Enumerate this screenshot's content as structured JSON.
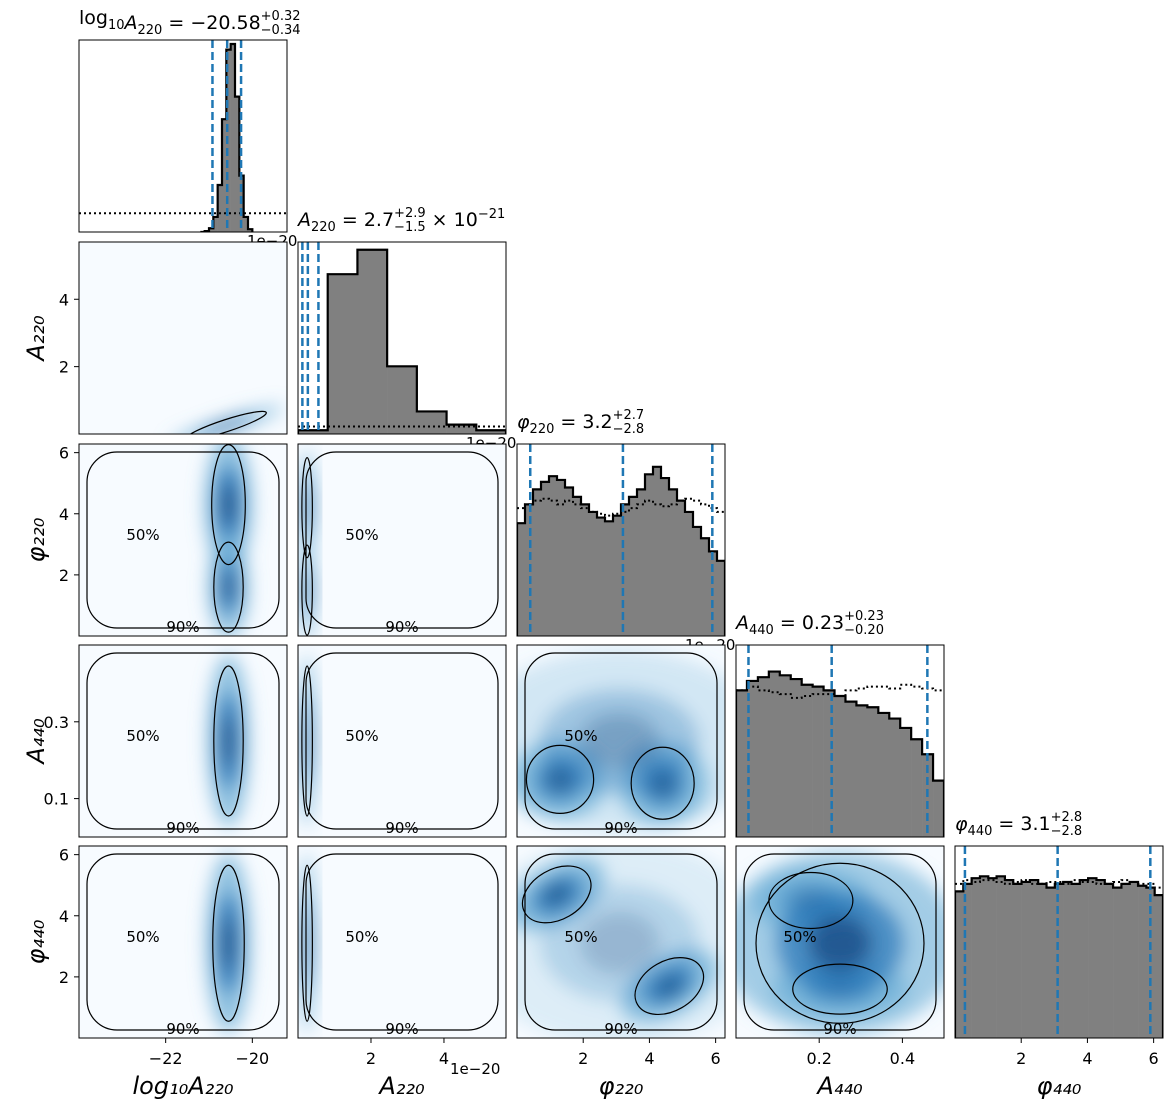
{
  "figure": {
    "type": "corner_plot",
    "parameters": [
      "log10A220",
      "A220",
      "phi220",
      "A440",
      "phi440"
    ],
    "colors": {
      "accent": "#1f77b4",
      "hist_fill": "#808080",
      "hist_edge": "#000000",
      "density_map": "Blues"
    }
  },
  "chart_data": [
    {
      "type": "histogram",
      "panel": "diag-0",
      "title": {
        "base": "log",
        "base_sub": "10",
        "var": "A",
        "var_sub": "220",
        "value": " = −20.58",
        "plus": "+0.32",
        "minus": "−0.34"
      },
      "xlim": [
        -24,
        -19
      ],
      "ylim": [
        0,
        1
      ],
      "bins": [
        -21.2,
        -21.1,
        -21.0,
        -20.9,
        -20.8,
        -20.7,
        -20.6,
        -20.5,
        -20.4,
        -20.3,
        -20.2,
        -20.1,
        -20.0
      ],
      "posterior": [
        0.0,
        0.005,
        0.02,
        0.08,
        0.25,
        0.6,
        0.97,
        1.0,
        0.72,
        0.3,
        0.08,
        0.015,
        0.0
      ],
      "prior_level": 0.1,
      "quantiles": [
        -20.92,
        -20.58,
        -20.26
      ],
      "offset_text": "1e−20"
    },
    {
      "type": "histogram",
      "panel": "diag-1",
      "title": {
        "var": "A",
        "var_sub": "220",
        "value": " = 2.7",
        "plus": "+2.9",
        "minus": "−1.5",
        "suffix": "× 10",
        "suffix_sup": "−21"
      },
      "xlim": [
        0.0,
        5.7
      ],
      "ylim": [
        0,
        1
      ],
      "hist": [
        0.02,
        0.85,
        0.98,
        0.36,
        0.12,
        0.05,
        0.02
      ],
      "quantiles": [
        0.12,
        0.27,
        0.56
      ],
      "prior_level": 0.04,
      "offset_text": "1e−20"
    },
    {
      "type": "histogram",
      "panel": "diag-2",
      "title": {
        "var": "φ",
        "var_sub": "220",
        "value": " = 3.2",
        "plus": "+2.7",
        "minus": "−2.8"
      },
      "xlim": [
        0,
        6.283
      ],
      "ylim": [
        0,
        1
      ],
      "hist": [
        0.6,
        0.7,
        0.78,
        0.82,
        0.85,
        0.83,
        0.79,
        0.74,
        0.7,
        0.66,
        0.63,
        0.61,
        0.64,
        0.7,
        0.74,
        0.78,
        0.86,
        0.9,
        0.84,
        0.78,
        0.72,
        0.66,
        0.58,
        0.52,
        0.45,
        0.4
      ],
      "prior": [
        0.68,
        0.7,
        0.72,
        0.73,
        0.72,
        0.7,
        0.72,
        0.7,
        0.68,
        0.66,
        0.65,
        0.64,
        0.65,
        0.66,
        0.68,
        0.7,
        0.72,
        0.7,
        0.69,
        0.7,
        0.72,
        0.73,
        0.72,
        0.7,
        0.68,
        0.66
      ],
      "quantiles": [
        0.4,
        3.2,
        5.9
      ],
      "offset_text": "1e−20"
    },
    {
      "type": "histogram",
      "panel": "diag-3",
      "title": {
        "var": "A",
        "var_sub": "440",
        "value": " = 0.23",
        "plus": "+0.23",
        "minus": "−0.20"
      },
      "xlim": [
        0,
        0.5
      ],
      "ylim": [
        0,
        1
      ],
      "hist": [
        0.78,
        0.83,
        0.85,
        0.88,
        0.86,
        0.84,
        0.81,
        0.8,
        0.78,
        0.75,
        0.72,
        0.7,
        0.69,
        0.66,
        0.63,
        0.58,
        0.52,
        0.44,
        0.3
      ],
      "prior": [
        0.78,
        0.8,
        0.78,
        0.77,
        0.76,
        0.74,
        0.75,
        0.76,
        0.76,
        0.75,
        0.78,
        0.79,
        0.8,
        0.8,
        0.79,
        0.81,
        0.8,
        0.79,
        0.78
      ],
      "quantiles": [
        0.03,
        0.23,
        0.46
      ]
    },
    {
      "type": "histogram",
      "panel": "diag-4",
      "title": {
        "var": "φ",
        "var_sub": "440",
        "value": " = 3.1",
        "plus": "+2.8",
        "minus": "−2.8"
      },
      "xlim": [
        0,
        6.283
      ],
      "ylim": [
        0,
        1
      ],
      "hist": [
        0.78,
        0.82,
        0.85,
        0.86,
        0.85,
        0.86,
        0.84,
        0.82,
        0.83,
        0.84,
        0.82,
        0.8,
        0.82,
        0.83,
        0.82,
        0.84,
        0.85,
        0.84,
        0.82,
        0.8,
        0.82,
        0.83,
        0.81,
        0.8,
        0.76
      ],
      "prior": [
        0.82,
        0.84,
        0.83,
        0.84,
        0.84,
        0.83,
        0.82,
        0.83,
        0.84,
        0.82,
        0.82,
        0.83,
        0.83,
        0.82,
        0.84,
        0.83,
        0.83,
        0.82,
        0.82,
        0.83,
        0.84,
        0.83,
        0.82,
        0.82,
        0.8
      ],
      "quantiles": [
        0.3,
        3.1,
        5.9
      ]
    }
  ],
  "axes": {
    "x": [
      {
        "label": "log₁₀A₂₂₀",
        "ticks": [
          "−22",
          "−20"
        ],
        "tick_values": [
          -22,
          -20
        ],
        "xlim": [
          -24,
          -19.2
        ]
      },
      {
        "label": "A₂₂₀",
        "ticks": [
          "2",
          "4"
        ],
        "tick_values": [
          2,
          4
        ],
        "xlim": [
          0,
          5.7
        ],
        "offset_text": "1e−20"
      },
      {
        "label": "φ₂₂₀",
        "ticks": [
          "2",
          "4",
          "6"
        ],
        "tick_values": [
          2,
          4,
          6
        ],
        "xlim": [
          0,
          6.283
        ]
      },
      {
        "label": "A₄₄₀",
        "ticks": [
          "0.2",
          "0.4"
        ],
        "tick_values": [
          0.2,
          0.4
        ],
        "xlim": [
          0,
          0.5
        ]
      },
      {
        "label": "φ₄₄₀",
        "ticks": [
          "2",
          "4",
          "6"
        ],
        "tick_values": [
          2,
          4,
          6
        ],
        "xlim": [
          0,
          6.283
        ]
      }
    ],
    "y": [
      {
        "row": 1,
        "label": "A₂₂₀",
        "ticks": [
          "2",
          "4"
        ],
        "tick_values": [
          2,
          4
        ],
        "ylim": [
          0,
          5.7
        ],
        "offset_text": "1e−20"
      },
      {
        "row": 2,
        "label": "φ₂₂₀",
        "ticks": [
          "2",
          "4",
          "6"
        ],
        "tick_values": [
          2,
          4,
          6
        ],
        "ylim": [
          0,
          6.283
        ]
      },
      {
        "row": 3,
        "label": "A₄₄₀",
        "ticks": [
          "0.1",
          "0.3"
        ],
        "tick_values": [
          0.1,
          0.3
        ],
        "ylim": [
          0,
          0.5
        ]
      },
      {
        "row": 4,
        "label": "φ₄₄₀",
        "ticks": [
          "2",
          "4",
          "6"
        ],
        "tick_values": [
          2,
          4,
          6
        ],
        "ylim": [
          0,
          6.283
        ]
      }
    ]
  },
  "contour_labels": [
    "50%",
    "90%"
  ]
}
